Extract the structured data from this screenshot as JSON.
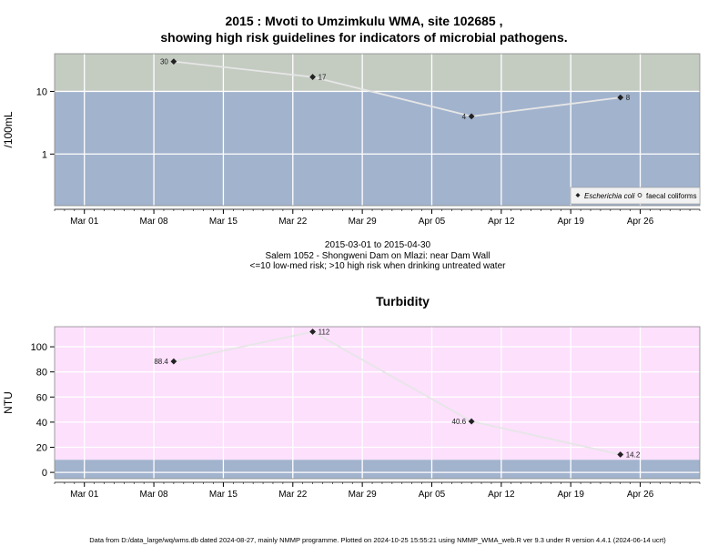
{
  "title_line1": "2015 : Mvoti to Umzimkulu WMA, site 102685 ,",
  "title_line2": "showing high risk guidelines for indicators of microbial pathogens.",
  "subtitle": {
    "dates": "2015-03-01 to 2015-04-30",
    "site": "Salem 1052 - Shongweni Dam on Mlazi: near Dam Wall",
    "risk": "<=10 low-med risk; >10 high risk when drinking untreated water"
  },
  "turbidity_title": "Turbidity",
  "footer": "Data from D:/data_large/wq/wms.db dated 2024-08-27, mainly NMMP programme. Plotted on 2024-10-25 15:55:21 using NMMP_WMA_web.R ver 9.3 under R version 4.4.1 (2024-06-14 ucrt)",
  "colors": {
    "high_risk_band": "#c4ccc2",
    "low_risk_band": "#a2b3cd",
    "turbidity_band": "#fce0fc",
    "grid": "#ffffff",
    "line": "#e6e6e6",
    "marker": "#222222"
  },
  "chart_data": [
    {
      "type": "line",
      "ylabel": "/100mL",
      "y_scale": "log",
      "ylim": [
        0.15,
        40
      ],
      "yticks": [
        "1",
        "10"
      ],
      "x_ticks": [
        "Mar 01",
        "Mar 08",
        "Mar 15",
        "Mar 22",
        "Mar 29",
        "Apr 05",
        "Apr 12",
        "Apr 19",
        "Apr 26"
      ],
      "x_range": [
        "2015-02-26",
        "2015-05-02"
      ],
      "threshold": 10,
      "legend_position": "bottom-right",
      "legend": [
        "Escherichia coli",
        "faecal coliforms"
      ],
      "series": [
        {
          "name": "Escherichia coli",
          "x": [
            "2015-03-10",
            "2015-03-24",
            "2015-04-09",
            "2015-04-24"
          ],
          "y": [
            30,
            17,
            4,
            8
          ],
          "labels": [
            "30",
            "17",
            "4",
            "8"
          ]
        }
      ]
    },
    {
      "type": "line",
      "title": "Turbidity",
      "ylabel": "NTU",
      "ylim": [
        -5,
        116
      ],
      "yticks": [
        "0",
        "20",
        "40",
        "60",
        "80",
        "100"
      ],
      "x_ticks": [
        "Mar 01",
        "Mar 08",
        "Mar 15",
        "Mar 22",
        "Mar 29",
        "Apr 05",
        "Apr 12",
        "Apr 19",
        "Apr 26"
      ],
      "x_range": [
        "2015-02-26",
        "2015-05-02"
      ],
      "threshold": 10,
      "series": [
        {
          "x": [
            "2015-03-10",
            "2015-03-24",
            "2015-04-09",
            "2015-04-24"
          ],
          "y": [
            88.4,
            112,
            40.6,
            14.2
          ],
          "labels": [
            "88.4",
            "112",
            "40.6",
            "14.2"
          ]
        }
      ]
    }
  ]
}
